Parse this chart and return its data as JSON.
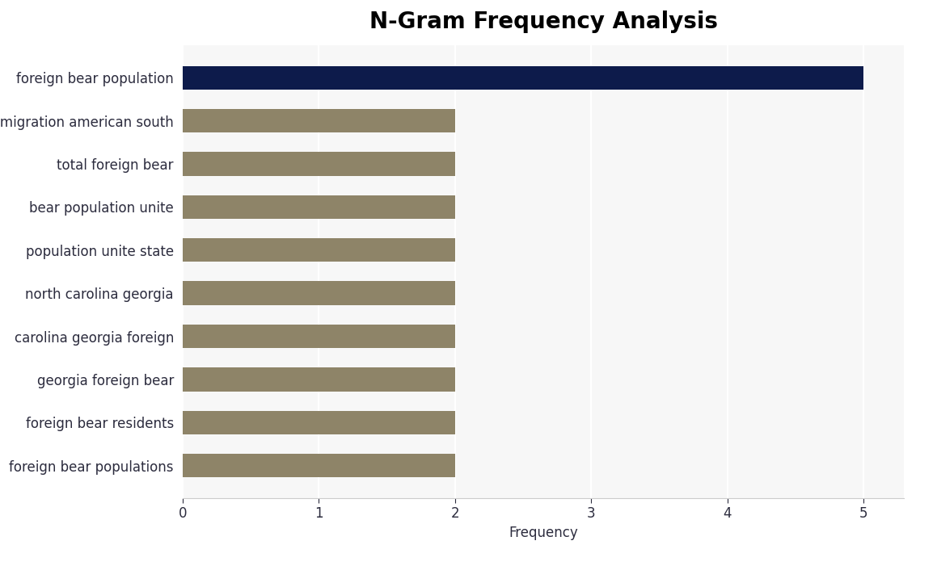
{
  "title": "N-Gram Frequency Analysis",
  "xlabel": "Frequency",
  "categories": [
    "foreign bear populations",
    "foreign bear residents",
    "georgia foreign bear",
    "carolina georgia foreign",
    "north carolina georgia",
    "population unite state",
    "bear population unite",
    "total foreign bear",
    "immigration american south",
    "foreign bear population"
  ],
  "values": [
    2,
    2,
    2,
    2,
    2,
    2,
    2,
    2,
    2,
    5
  ],
  "bar_colors": [
    "#8e8468",
    "#8e8468",
    "#8e8468",
    "#8e8468",
    "#8e8468",
    "#8e8468",
    "#8e8468",
    "#8e8468",
    "#8e8468",
    "#0d1b4b"
  ],
  "xlim": [
    0,
    5.3
  ],
  "xticks": [
    0,
    1,
    2,
    3,
    4,
    5
  ],
  "plot_bg_color": "#f7f7f7",
  "fig_bg_color": "#ffffff",
  "title_fontsize": 20,
  "label_fontsize": 12,
  "tick_fontsize": 12,
  "bar_height": 0.55,
  "text_color": "#2c2c3e",
  "grid_color": "#ffffff"
}
